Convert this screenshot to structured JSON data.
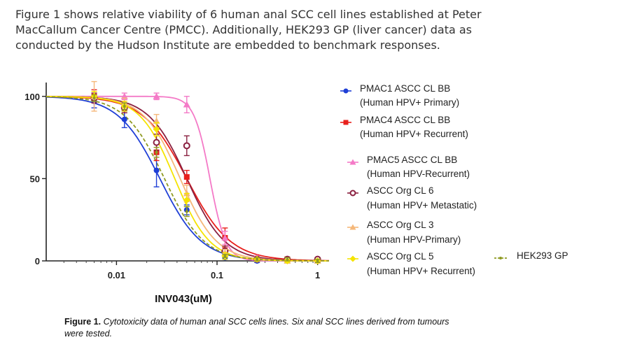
{
  "intro_lines": [
    "Figure 1 shows relative viability of 6 human anal SCC cell lines established at Peter",
    "MacCallum Cancer Centre (PMCC). Additionally, HEK293 GP (liver cancer) data as",
    "conducted by the Hudson Institute are embedded to benchmark responses."
  ],
  "caption": {
    "label": "Figure 1.",
    "lines": [
      "Cytotoxicity data of human anal SCC cells lines. Six anal SCC lines derived from tumours",
      "were tested."
    ]
  },
  "chart_data": {
    "type": "line",
    "xlabel": "INV043(uM)",
    "ylabel": "",
    "x_scale": "log",
    "xlim": [
      0.002,
      1.3
    ],
    "ylim": [
      0,
      105
    ],
    "x_ticks": [
      {
        "value": 0.01,
        "label": "0.01"
      },
      {
        "value": 0.1,
        "label": "0.1"
      },
      {
        "value": 1,
        "label": "1"
      }
    ],
    "y_ticks": [
      {
        "value": 0,
        "label": "0"
      },
      {
        "value": 50,
        "label": "50"
      },
      {
        "value": 100,
        "label": "100"
      }
    ],
    "grid": false,
    "legend_position": "right",
    "series": [
      {
        "name": "PMAC1 ASCC CL BB",
        "name_line2": "(Human HPV+ Primary)",
        "color": "#1f3fd6",
        "marker": "circle",
        "ic50": 0.027,
        "hill": 2.1,
        "points": [
          {
            "x": 0.006,
            "y": 97,
            "err": 4
          },
          {
            "x": 0.012,
            "y": 86,
            "err": 5
          },
          {
            "x": 0.025,
            "y": 55,
            "err": 10
          },
          {
            "x": 0.05,
            "y": 31,
            "err": 3
          },
          {
            "x": 0.12,
            "y": 2,
            "err": 1
          },
          {
            "x": 0.25,
            "y": 0,
            "err": 1
          },
          {
            "x": 0.5,
            "y": 1,
            "err": 1
          },
          {
            "x": 1.0,
            "y": 1,
            "err": 1
          }
        ]
      },
      {
        "name": "PMAC4 ASCC CL BB",
        "name_line2": "(Human HPV+ Recurrent)",
        "color": "#e8201c",
        "marker": "square",
        "ic50": 0.05,
        "hill": 2.0,
        "points": [
          {
            "x": 0.006,
            "y": 100,
            "err": 4
          },
          {
            "x": 0.012,
            "y": 93,
            "err": 3
          },
          {
            "x": 0.025,
            "y": 66,
            "err": 5
          },
          {
            "x": 0.05,
            "y": 51,
            "err": 4
          },
          {
            "x": 0.12,
            "y": 14,
            "err": 6
          },
          {
            "x": 0.25,
            "y": 1,
            "err": 1
          },
          {
            "x": 0.5,
            "y": 1,
            "err": 1
          },
          {
            "x": 1.0,
            "y": 0,
            "err": 1
          }
        ]
      },
      {
        "name": "PMAC5 ASCC CL BB",
        "name_line2": "(Human HPV-Recurrent)",
        "color": "#f47ac7",
        "marker": "triangle",
        "ic50": 0.085,
        "hill": 5.5,
        "points": [
          {
            "x": 0.006,
            "y": 100,
            "err": 2
          },
          {
            "x": 0.012,
            "y": 100,
            "err": 2
          },
          {
            "x": 0.025,
            "y": 100,
            "err": 2
          },
          {
            "x": 0.05,
            "y": 95,
            "err": 5
          },
          {
            "x": 0.12,
            "y": 14,
            "err": 4
          },
          {
            "x": 0.25,
            "y": 2,
            "err": 1
          },
          {
            "x": 0.5,
            "y": 1,
            "err": 1
          },
          {
            "x": 1.0,
            "y": 1,
            "err": 1
          }
        ]
      },
      {
        "name": "ASCC Org CL 6",
        "name_line2": "(Human HPV+ Metastatic)",
        "color": "#8a2040",
        "marker": "open-circle",
        "ic50": 0.05,
        "hill": 2.3,
        "points": [
          {
            "x": 0.006,
            "y": 99,
            "err": 3
          },
          {
            "x": 0.012,
            "y": 93,
            "err": 3
          },
          {
            "x": 0.025,
            "y": 72,
            "err": 5
          },
          {
            "x": 0.05,
            "y": 70,
            "err": 6
          },
          {
            "x": 0.12,
            "y": 6,
            "err": 3
          },
          {
            "x": 0.25,
            "y": 1,
            "err": 1
          },
          {
            "x": 0.5,
            "y": 1,
            "err": 1
          },
          {
            "x": 1.0,
            "y": 1,
            "err": 1
          }
        ]
      },
      {
        "name": "ASCC Org CL 3",
        "name_line2": "(Human HPV-Primary)",
        "color": "#f5b87a",
        "marker": "triangle",
        "ic50": 0.043,
        "hill": 2.4,
        "points": [
          {
            "x": 0.006,
            "y": 100,
            "err": 9
          },
          {
            "x": 0.012,
            "y": 96,
            "err": 3
          },
          {
            "x": 0.025,
            "y": 85,
            "err": 4
          },
          {
            "x": 0.05,
            "y": 41,
            "err": 5
          },
          {
            "x": 0.12,
            "y": 5,
            "err": 2
          },
          {
            "x": 0.25,
            "y": 1,
            "err": 1
          },
          {
            "x": 0.5,
            "y": 0,
            "err": 1
          },
          {
            "x": 1.0,
            "y": 0,
            "err": 1
          }
        ]
      },
      {
        "name": "ASCC Org CL 5",
        "name_line2": "(Human HPV+ Recurrent)",
        "color": "#f5e400",
        "marker": "diamond",
        "ic50": 0.038,
        "hill": 2.5,
        "points": [
          {
            "x": 0.006,
            "y": 100,
            "err": 3
          },
          {
            "x": 0.012,
            "y": 94,
            "err": 3
          },
          {
            "x": 0.025,
            "y": 80,
            "err": 4
          },
          {
            "x": 0.05,
            "y": 37,
            "err": 4
          },
          {
            "x": 0.12,
            "y": 3,
            "err": 2
          },
          {
            "x": 0.25,
            "y": 1,
            "err": 1
          },
          {
            "x": 0.5,
            "y": 0,
            "err": 1
          },
          {
            "x": 1.0,
            "y": 0,
            "err": 1
          }
        ]
      },
      {
        "name": "HEK293 GP",
        "name_line2": "",
        "color": "#8f9a22",
        "marker": "dashed",
        "ic50": 0.03,
        "hill": 2.2,
        "points": [
          {
            "x": 0.006,
            "y": 99,
            "err": 2
          },
          {
            "x": 0.012,
            "y": 94,
            "err": 2
          },
          {
            "x": 0.025,
            "y": 66,
            "err": 3
          },
          {
            "x": 0.05,
            "y": 30,
            "err": 3
          },
          {
            "x": 0.12,
            "y": 3,
            "err": 1
          },
          {
            "x": 0.25,
            "y": 1,
            "err": 1
          },
          {
            "x": 0.5,
            "y": 1,
            "err": 1
          },
          {
            "x": 1.0,
            "y": 0,
            "err": 1
          }
        ]
      }
    ]
  }
}
